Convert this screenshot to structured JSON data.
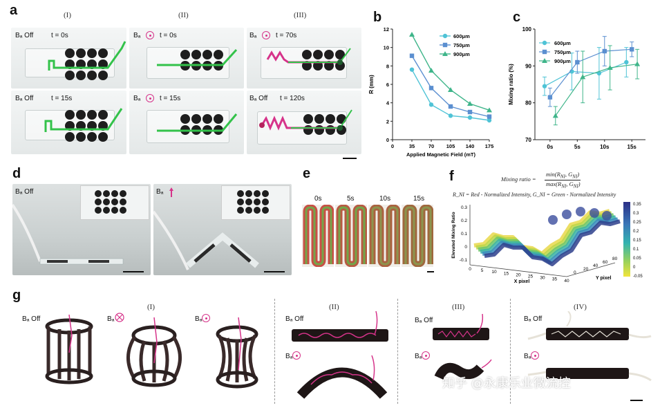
{
  "panels": {
    "a": {
      "letter": "a",
      "columns": [
        "(I)",
        "(II)",
        "(III)"
      ],
      "labels": [
        {
          "field": "Bₐ Off",
          "time": "t = 0s"
        },
        {
          "field": "Bₐ",
          "time": "t = 0s"
        },
        {
          "field": "Bₐ",
          "time": "t = 70s"
        },
        {
          "field": "Bₐ Off",
          "time": "t = 15s"
        },
        {
          "field": "Bₐ",
          "time": "t = 15s"
        },
        {
          "field": "Bₐ Off",
          "time": "t = 120s"
        }
      ]
    },
    "b": {
      "letter": "b"
    },
    "c": {
      "letter": "c"
    },
    "d": {
      "letter": "d",
      "labels": [
        "Bₐ Off",
        "Bₐ"
      ]
    },
    "e": {
      "letter": "e",
      "times": [
        "0s",
        "5s",
        "10s",
        "15s"
      ]
    },
    "f": {
      "letter": "f",
      "equation_lhs": "Mixing ratio =",
      "equation_num": "min(R",
      "equation_num_sub": "NI",
      "equation_num_rest": ", G",
      "equation_num_sub2": "NI",
      "equation_num_end": ")",
      "equation_den": "max(R",
      "equation_den_sub": "NI",
      "equation_den_rest": ", G",
      "equation_den_sub2": "NI",
      "equation_den_end": ")",
      "definition": "R_NI = Red - Normalized Intensity,  G_NI = Green - Normalized Intensity",
      "zlabel": "Elevated Mixing Ratio",
      "xlabel": "X pixel",
      "ylabel": "Y pixel",
      "x_ticks": [
        "0",
        "5",
        "10",
        "15",
        "20",
        "25",
        "30",
        "35",
        "40"
      ],
      "y_ticks": [
        "0",
        "20",
        "40",
        "60",
        "80"
      ],
      "z_ticks": [
        "0.3",
        "0.2",
        "0.1",
        "0",
        "-0.1"
      ],
      "colorbar_ticks": [
        "0.35",
        "0.3",
        "0.25",
        "0.2",
        "0.15",
        "0.1",
        "0.05",
        "0",
        "-0.05"
      ]
    },
    "g": {
      "letter": "g",
      "columns": [
        "(I)",
        "(II)",
        "(III)",
        "(IV)"
      ],
      "labels": [
        "Bₐ Off",
        "Bₐ",
        "Bₐ",
        "Bₐ Off",
        "Bₐ",
        "Bₐ Off",
        "Bₐ",
        "Bₐ Off",
        "Bₐ"
      ]
    }
  },
  "watermark": "知乎 @永康乐业微流控",
  "colors": {
    "s600": "#4fc3d6",
    "s750": "#5b8fd0",
    "s900": "#3fb58a",
    "green": "#33c24a",
    "magenta": "#d6338a"
  },
  "chart_data": [
    {
      "type": "line",
      "panel": "b",
      "xlabel": "Applied Magnetic Field (mT)",
      "ylabel": "R (mm)",
      "x": [
        35,
        70,
        105,
        140,
        175
      ],
      "xlim": [
        0,
        175
      ],
      "ylim": [
        0,
        12
      ],
      "x_ticks": [
        0,
        35,
        70,
        105,
        140,
        175
      ],
      "y_ticks": [
        0,
        2,
        4,
        6,
        8,
        10,
        12
      ],
      "legend_position": "top-right",
      "series": [
        {
          "name": "600μm",
          "marker": "circle",
          "values": [
            7.6,
            3.8,
            2.6,
            2.4,
            2.1
          ]
        },
        {
          "name": "750μm",
          "marker": "square",
          "values": [
            9.1,
            5.6,
            3.6,
            3.0,
            2.5
          ]
        },
        {
          "name": "900μm",
          "marker": "triangle",
          "values": [
            11.4,
            7.5,
            5.4,
            3.9,
            3.2
          ]
        }
      ]
    },
    {
      "type": "line",
      "panel": "c",
      "ylabel": "Mixing ratio (%)",
      "categories": [
        "0s",
        "5s",
        "10s",
        "15s"
      ],
      "ylim": [
        70,
        100
      ],
      "y_ticks": [
        70,
        80,
        90,
        100
      ],
      "legend_position": "top-left",
      "series": [
        {
          "name": "600μm",
          "marker": "circle",
          "x": [
            -0.2,
            0.8,
            1.8,
            2.8
          ],
          "values": [
            84.5,
            88.5,
            88.0,
            91.0
          ],
          "errors": [
            2.5,
            5.0,
            7.0,
            4.0
          ]
        },
        {
          "name": "750μm",
          "marker": "square",
          "x": [
            0.0,
            1.0,
            2.0,
            3.0
          ],
          "values": [
            81.5,
            91.0,
            94.0,
            94.5
          ],
          "errors": [
            2.5,
            3.0,
            4.0,
            2.0
          ]
        },
        {
          "name": "900μm",
          "marker": "triangle",
          "x": [
            0.2,
            1.2,
            2.2,
            3.2
          ],
          "values": [
            76.5,
            87.0,
            89.5,
            90.5
          ],
          "errors": [
            2.5,
            7.0,
            6.0,
            4.0
          ]
        }
      ]
    }
  ]
}
